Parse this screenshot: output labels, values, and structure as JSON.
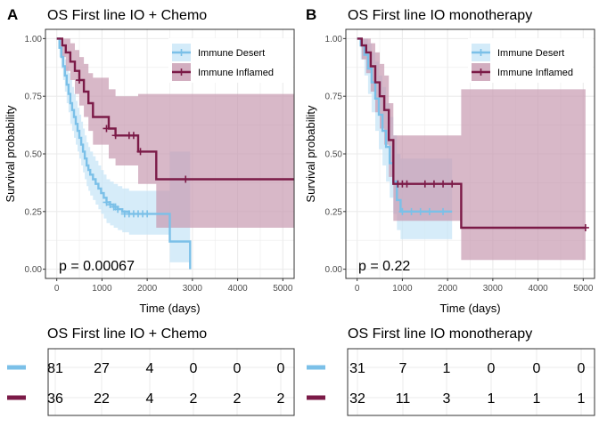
{
  "colors": {
    "desert": "#7BC0E8",
    "inflamed": "#7B1A47",
    "desert_band": "#C8E6F7",
    "inflamed_band": "#C79AB0",
    "grid": "#EBEBEB",
    "border": "#333333"
  },
  "panels": [
    {
      "letter": "A",
      "title": "OS First line IO + Chemo",
      "pvalue_text": "p = 0.00067",
      "legend": [
        "Immune Desert",
        "Immune Inflamed"
      ],
      "risk_table": {
        "title": "OS First line IO + Chemo",
        "rows": [
          {
            "group": "Immune Desert",
            "values": [
              "81",
              "27",
              "4",
              "0",
              "0",
              "0"
            ]
          },
          {
            "group": "Immune Inflamed",
            "values": [
              "36",
              "22",
              "4",
              "2",
              "2",
              "2"
            ]
          }
        ]
      }
    },
    {
      "letter": "B",
      "title": "OS First line IO monotherapy",
      "pvalue_text": "p = 0.22",
      "legend": [
        "Immune Desert",
        "Immune Inflamed"
      ],
      "risk_table": {
        "title": "OS First line IO monotherapy",
        "rows": [
          {
            "group": "Immune Desert",
            "values": [
              "31",
              "7",
              "1",
              "0",
              "0",
              "0"
            ]
          },
          {
            "group": "Immune Inflamed",
            "values": [
              "32",
              "11",
              "3",
              "1",
              "1",
              "1"
            ]
          }
        ]
      }
    }
  ],
  "chart_data": [
    {
      "type": "line",
      "subtype": "kaplan-meier",
      "title": "OS First line IO + Chemo",
      "xlabel": "Time (days)",
      "ylabel": "Survival probability",
      "xlim": [
        -250,
        5250
      ],
      "ylim": [
        -0.04,
        1.04
      ],
      "xticks": [
        0,
        1000,
        2000,
        3000,
        4000,
        5000
      ],
      "yticks": [
        "0.00",
        "0.25",
        "0.50",
        "0.75",
        "1.00"
      ],
      "grid": true,
      "legend_position": "top-right",
      "series": [
        {
          "name": "Immune Desert",
          "color": "#7BC0E8",
          "x": [
            0,
            60,
            100,
            140,
            180,
            220,
            260,
            300,
            340,
            380,
            420,
            460,
            500,
            540,
            580,
            620,
            660,
            700,
            740,
            800,
            860,
            920,
            980,
            1040,
            1100,
            1180,
            1260,
            1350,
            1450,
            1600,
            1800,
            2000,
            2200,
            2500,
            2950
          ],
          "y": [
            1.0,
            0.96,
            0.92,
            0.88,
            0.84,
            0.8,
            0.76,
            0.72,
            0.69,
            0.66,
            0.63,
            0.6,
            0.57,
            0.54,
            0.51,
            0.48,
            0.45,
            0.43,
            0.41,
            0.39,
            0.37,
            0.35,
            0.33,
            0.31,
            0.29,
            0.28,
            0.27,
            0.26,
            0.25,
            0.24,
            0.24,
            0.24,
            0.24,
            0.12,
            0.0
          ],
          "lower": [
            1.0,
            0.92,
            0.87,
            0.82,
            0.77,
            0.72,
            0.68,
            0.63,
            0.6,
            0.57,
            0.54,
            0.51,
            0.48,
            0.45,
            0.42,
            0.39,
            0.36,
            0.34,
            0.32,
            0.3,
            0.28,
            0.26,
            0.24,
            0.22,
            0.2,
            0.19,
            0.18,
            0.17,
            0.16,
            0.15,
            0.15,
            0.15,
            0.15,
            0.03,
            0.0
          ],
          "upper": [
            1.0,
            1.0,
            0.97,
            0.94,
            0.91,
            0.88,
            0.85,
            0.82,
            0.79,
            0.76,
            0.73,
            0.7,
            0.67,
            0.64,
            0.61,
            0.58,
            0.55,
            0.53,
            0.51,
            0.49,
            0.47,
            0.45,
            0.43,
            0.41,
            0.39,
            0.38,
            0.37,
            0.36,
            0.35,
            0.34,
            0.34,
            0.34,
            0.34,
            0.51,
            0.0
          ],
          "censored": [
            [
              1100,
              0.29
            ],
            [
              1180,
              0.28
            ],
            [
              1260,
              0.27
            ],
            [
              1300,
              0.27
            ],
            [
              1350,
              0.26
            ],
            [
              1500,
              0.24
            ],
            [
              1600,
              0.24
            ],
            [
              1700,
              0.24
            ],
            [
              1800,
              0.24
            ],
            [
              1900,
              0.24
            ],
            [
              2000,
              0.24
            ]
          ]
        },
        {
          "name": "Immune Inflamed",
          "color": "#7B1A47",
          "x": [
            0,
            120,
            200,
            300,
            400,
            500,
            600,
            700,
            800,
            1000,
            1150,
            1300,
            1500,
            1800,
            2200,
            5250
          ],
          "y": [
            1.0,
            0.97,
            0.94,
            0.9,
            0.86,
            0.82,
            0.77,
            0.72,
            0.66,
            0.66,
            0.61,
            0.58,
            0.58,
            0.51,
            0.39,
            0.39
          ],
          "lower": [
            1.0,
            0.92,
            0.86,
            0.82,
            0.76,
            0.71,
            0.66,
            0.6,
            0.54,
            0.54,
            0.48,
            0.45,
            0.45,
            0.37,
            0.18,
            0.18
          ],
          "upper": [
            1.0,
            1.0,
            1.0,
            0.98,
            0.95,
            0.92,
            0.89,
            0.85,
            0.83,
            0.83,
            0.78,
            0.75,
            0.75,
            0.76,
            0.76,
            0.76
          ],
          "censored": [
            [
              500,
              0.82
            ],
            [
              1100,
              0.61
            ],
            [
              1300,
              0.58
            ],
            [
              1600,
              0.58
            ],
            [
              1700,
              0.58
            ],
            [
              1850,
              0.51
            ],
            [
              2850,
              0.39
            ]
          ]
        }
      ]
    },
    {
      "type": "line",
      "subtype": "kaplan-meier",
      "title": "OS First line IO monotherapy",
      "xlabel": "Time (days)",
      "ylabel": "Survival probability",
      "xlim": [
        -250,
        5250
      ],
      "ylim": [
        -0.04,
        1.04
      ],
      "xticks": [
        0,
        1000,
        2000,
        3000,
        4000,
        5000
      ],
      "yticks": [
        "0.00",
        "0.25",
        "0.50",
        "0.75",
        "1.00"
      ],
      "grid": true,
      "legend_position": "top-right",
      "series": [
        {
          "name": "Immune Desert",
          "color": "#7BC0E8",
          "x": [
            0,
            80,
            160,
            240,
            320,
            400,
            480,
            560,
            640,
            720,
            800,
            880,
            960,
            2100
          ],
          "y": [
            1.0,
            0.97,
            0.93,
            0.87,
            0.81,
            0.74,
            0.67,
            0.6,
            0.53,
            0.46,
            0.38,
            0.3,
            0.25,
            0.25
          ],
          "lower": [
            1.0,
            0.91,
            0.84,
            0.76,
            0.68,
            0.6,
            0.52,
            0.45,
            0.38,
            0.31,
            0.24,
            0.17,
            0.13,
            0.13
          ],
          "upper": [
            1.0,
            1.0,
            1.0,
            0.98,
            0.94,
            0.9,
            0.84,
            0.79,
            0.72,
            0.66,
            0.58,
            0.5,
            0.48,
            0.48
          ],
          "censored": [
            [
              1000,
              0.25
            ],
            [
              1200,
              0.25
            ],
            [
              1400,
              0.25
            ],
            [
              1600,
              0.25
            ],
            [
              1900,
              0.25
            ]
          ]
        },
        {
          "name": "Immune Inflamed",
          "color": "#7B1A47",
          "x": [
            0,
            100,
            200,
            300,
            400,
            500,
            600,
            700,
            800,
            2300,
            5050
          ],
          "y": [
            1.0,
            0.97,
            0.94,
            0.88,
            0.81,
            0.75,
            0.69,
            0.56,
            0.37,
            0.18,
            0.18
          ],
          "lower": [
            1.0,
            0.91,
            0.85,
            0.77,
            0.68,
            0.61,
            0.54,
            0.4,
            0.21,
            0.04,
            0.04
          ],
          "upper": [
            1.0,
            1.0,
            1.0,
            0.98,
            0.94,
            0.89,
            0.84,
            0.72,
            0.58,
            0.78,
            0.78
          ],
          "censored": [
            [
              900,
              0.37
            ],
            [
              1000,
              0.37
            ],
            [
              1100,
              0.37
            ],
            [
              1500,
              0.37
            ],
            [
              1700,
              0.37
            ],
            [
              1900,
              0.37
            ],
            [
              2100,
              0.37
            ],
            [
              5050,
              0.18
            ]
          ]
        }
      ]
    }
  ]
}
